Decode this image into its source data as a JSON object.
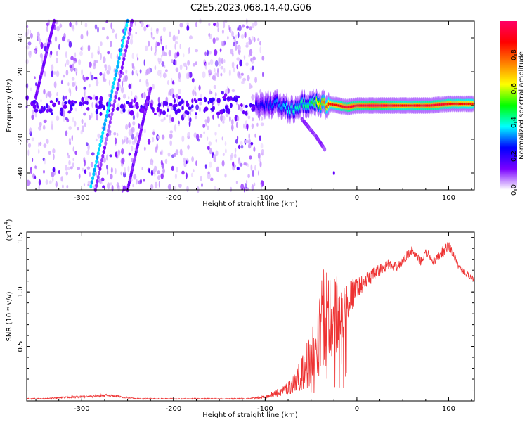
{
  "title": "C2E5.2023.068.14.40.G06",
  "chart_data": [
    {
      "type": "heatmap",
      "name": "spectrogram",
      "xlabel": "Height of straight line (km)",
      "ylabel": "Frequency (Hz)",
      "xlim": [
        -360,
        128
      ],
      "ylim": [
        -50,
        50
      ],
      "xticks": [
        -300,
        -200,
        -100,
        0,
        100
      ],
      "yticks": [
        -40,
        -20,
        0,
        20,
        40
      ],
      "colorbar": {
        "label": "Normalized spectral amplitude",
        "range": [
          0.0,
          1.0
        ],
        "ticks": [
          0.0,
          0.2,
          0.4,
          0.6,
          0.8
        ],
        "tick_labels": [
          "0.0",
          "0.2",
          "0.4",
          "0.6",
          "0.8"
        ],
        "colormap": [
          "#ffffff",
          "#7a00ff",
          "#0000ff",
          "#00ffff",
          "#00ff00",
          "#ffff00",
          "#ff8000",
          "#ff0000",
          "#ff0066"
        ]
      },
      "features": [
        {
          "name": "noise_region",
          "x_range": [
            -360,
            -102
          ],
          "freq_range": [
            -50,
            50
          ],
          "description_amplitude": 0.05
        },
        {
          "name": "satellite_line_main",
          "points": [
            [
              -290,
              -48
            ],
            [
              -250,
              50
            ]
          ],
          "amplitude": 0.35
        },
        {
          "name": "satellite_line_faint",
          "points": [
            [
              -285,
              -50
            ],
            [
              -245,
              50
            ]
          ],
          "amplitude": 0.1
        },
        {
          "name": "satellite_line_lower",
          "points": [
            [
              -250,
              -50
            ],
            [
              -225,
              10
            ]
          ],
          "amplitude": 0.12
        },
        {
          "name": "satellite_line_upper_left",
          "points": [
            [
              -350,
              5
            ],
            [
              -330,
              50
            ]
          ],
          "amplitude": 0.12
        },
        {
          "name": "carrier",
          "x": [
            -110,
            -90,
            -70,
            -50,
            -40,
            -30,
            -20,
            -10,
            0,
            20,
            50,
            80,
            100,
            128
          ],
          "freq": [
            0,
            1,
            -2,
            2,
            0,
            1,
            0,
            -1,
            0,
            0,
            0,
            0,
            1,
            1
          ],
          "amplitude": [
            0.2,
            0.3,
            0.4,
            0.45,
            0.7,
            0.85,
            0.9,
            0.95,
            0.95,
            1.0,
            0.9,
            0.95,
            0.9,
            0.85
          ]
        },
        {
          "name": "descending_branch",
          "points": [
            [
              -60,
              -8
            ],
            [
              -45,
              -18
            ],
            [
              -35,
              -26
            ]
          ],
          "amplitude": 0.1
        },
        {
          "name": "isolated_dot",
          "points": [
            [
              -25,
              -40
            ]
          ],
          "amplitude": 0.05
        }
      ]
    },
    {
      "type": "line",
      "name": "snr",
      "xlabel": "Height of straight line (km)",
      "ylabel": "SNR (10 * v/v)",
      "yscale_note": "(x10",
      "yscale_exp": "4",
      "yscale_close": ")",
      "xlim": [
        -360,
        128
      ],
      "ylim": [
        0,
        1.55
      ],
      "xticks": [
        -300,
        -200,
        -100,
        0,
        100
      ],
      "yticks": [
        0.5,
        1.0,
        1.5
      ],
      "ytick_labels": [
        "0.5",
        "1.0",
        "1.5"
      ],
      "color": "#ee3333",
      "series": [
        {
          "name": "SNR",
          "x": [
            -360,
            -340,
            -320,
            -300,
            -290,
            -280,
            -270,
            -260,
            -250,
            -240,
            -220,
            -200,
            -180,
            -160,
            -140,
            -120,
            -105,
            -90,
            -80,
            -70,
            -60,
            -50,
            -45,
            -40,
            -35,
            -30,
            -25,
            -20,
            -15,
            -10,
            -5,
            0,
            5,
            10,
            15,
            20,
            25,
            30,
            35,
            40,
            45,
            50,
            55,
            60,
            65,
            70,
            75,
            80,
            85,
            90,
            95,
            100,
            105,
            110,
            115,
            120,
            128
          ],
          "y": [
            0.02,
            0.02,
            0.03,
            0.04,
            0.04,
            0.05,
            0.05,
            0.04,
            0.03,
            0.02,
            0.02,
            0.02,
            0.02,
            0.02,
            0.02,
            0.02,
            0.03,
            0.06,
            0.1,
            0.15,
            0.25,
            0.4,
            0.55,
            0.65,
            0.75,
            0.82,
            0.78,
            0.75,
            0.82,
            0.92,
            0.98,
            1.03,
            1.07,
            1.1,
            1.14,
            1.17,
            1.2,
            1.23,
            1.26,
            1.22,
            1.24,
            1.28,
            1.34,
            1.38,
            1.32,
            1.28,
            1.36,
            1.32,
            1.27,
            1.34,
            1.38,
            1.42,
            1.35,
            1.25,
            1.2,
            1.16,
            1.12
          ],
          "spread": [
            0.005,
            0.005,
            0.008,
            0.01,
            0.01,
            0.012,
            0.012,
            0.01,
            0.008,
            0.005,
            0.005,
            0.005,
            0.005,
            0.005,
            0.005,
            0.006,
            0.01,
            0.03,
            0.05,
            0.08,
            0.15,
            0.3,
            0.4,
            0.45,
            0.5,
            0.4,
            0.45,
            0.35,
            0.25,
            0.2,
            0.15,
            0.1,
            0.08,
            0.08,
            0.07,
            0.06,
            0.06,
            0.05,
            0.05,
            0.05,
            0.04,
            0.04,
            0.04,
            0.04,
            0.04,
            0.04,
            0.04,
            0.04,
            0.04,
            0.04,
            0.06,
            0.06,
            0.04,
            0.03,
            0.03,
            0.03,
            0.03
          ]
        }
      ]
    }
  ]
}
